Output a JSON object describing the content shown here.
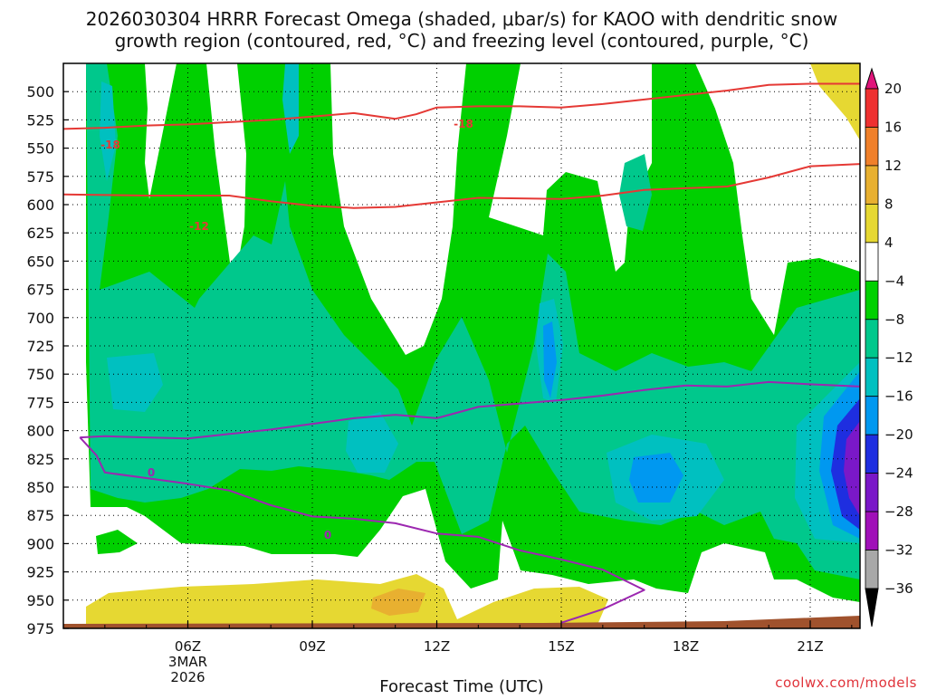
{
  "chart_data": {
    "type": "time-height contour",
    "title_line1": "2026030304 HRRR Forecast Omega (shaded, μbar/s) for KAOO with dendritic snow",
    "title_line2": "growth region (contoured, red, °C) and freezing level (contoured, purple, °C)",
    "xlabel": "Forecast Time (UTC)",
    "ylabel": "",
    "credit": "coolwx.com/models",
    "x_range_hours": [
      3,
      22.2
    ],
    "y_range_mb": [
      975,
      475
    ],
    "y_ticks": [
      500,
      525,
      550,
      575,
      600,
      625,
      650,
      675,
      700,
      725,
      750,
      775,
      800,
      825,
      850,
      875,
      900,
      925,
      950,
      975
    ],
    "y_tick_labels": [
      "500",
      "525",
      "550",
      "575",
      "600",
      "625",
      "650",
      "675",
      "700",
      "725",
      "750",
      "775",
      "800",
      "825",
      "850",
      "875",
      "900",
      "925",
      "950",
      "975"
    ],
    "x_ticks": [
      {
        "hour": 6,
        "label": "06Z",
        "sub1": "3MAR",
        "sub2": "2026"
      },
      {
        "hour": 9,
        "label": "09Z"
      },
      {
        "hour": 12,
        "label": "12Z"
      },
      {
        "hour": 15,
        "label": "15Z"
      },
      {
        "hour": 18,
        "label": "18Z"
      },
      {
        "hour": 21,
        "label": "21Z"
      }
    ],
    "colorbar": {
      "labels": [
        "20",
        "16",
        "12",
        "8",
        "4",
        "−4",
        "−8",
        "−12",
        "−16",
        "−20",
        "−24",
        "−28",
        "−32",
        "−36"
      ],
      "levels": [
        {
          "color": "#e0147a"
        },
        {
          "color": "#ee3030"
        },
        {
          "color": "#f0802a"
        },
        {
          "color": "#e8b030"
        },
        {
          "color": "#e6d832"
        },
        {
          "color": "#ffffff"
        },
        {
          "color": "#00d000"
        },
        {
          "color": "#00c88c"
        },
        {
          "color": "#00c0c0"
        },
        {
          "color": "#0098f0"
        },
        {
          "color": "#1e2ee0"
        },
        {
          "color": "#7a18c8"
        },
        {
          "color": "#a010b8"
        },
        {
          "color": "#a8a8a8"
        },
        {
          "color": "#000000"
        }
      ]
    },
    "contour_labels": [
      {
        "text": "-18",
        "color": "#e53935"
      },
      {
        "text": "-18",
        "color": "#e53935"
      },
      {
        "text": "-12",
        "color": "#e53935"
      },
      {
        "text": "0",
        "color": "#9c27b0"
      },
      {
        "text": "0",
        "color": "#9c27b0"
      }
    ],
    "series": [
      {
        "name": "-18C isotherm",
        "color": "#e53935",
        "points": [
          [
            3,
            533
          ],
          [
            4,
            532
          ],
          [
            5,
            530
          ],
          [
            6,
            529
          ],
          [
            7,
            527
          ],
          [
            8,
            525
          ],
          [
            9,
            522
          ],
          [
            10,
            519
          ],
          [
            11,
            524
          ],
          [
            11.5,
            520
          ],
          [
            12,
            514
          ],
          [
            13,
            513
          ],
          [
            14,
            513
          ],
          [
            15,
            514
          ],
          [
            16,
            511
          ],
          [
            17,
            507
          ],
          [
            18,
            503
          ],
          [
            19,
            499
          ],
          [
            20,
            494
          ],
          [
            21,
            493
          ],
          [
            22.2,
            493
          ]
        ]
      },
      {
        "name": "-12C isotherm",
        "color": "#e53935",
        "points": [
          [
            3,
            591
          ],
          [
            5,
            592
          ],
          [
            6,
            592
          ],
          [
            7,
            592
          ],
          [
            8,
            597
          ],
          [
            9,
            601
          ],
          [
            10,
            603
          ],
          [
            11,
            602
          ],
          [
            12,
            598
          ],
          [
            13,
            594
          ],
          [
            15,
            595
          ],
          [
            16,
            592
          ],
          [
            17,
            587
          ],
          [
            19,
            584
          ],
          [
            20,
            576
          ],
          [
            21,
            566
          ],
          [
            22.2,
            564
          ]
        ]
      },
      {
        "name": "0C freezing level",
        "color": "#9c27b0",
        "points": [
          [
            3.4,
            806
          ],
          [
            4,
            805
          ],
          [
            5,
            806
          ],
          [
            6,
            807
          ],
          [
            7,
            803
          ],
          [
            8,
            799
          ],
          [
            9,
            794
          ],
          [
            10,
            789
          ],
          [
            11,
            786
          ],
          [
            12,
            789
          ],
          [
            13,
            779
          ],
          [
            14,
            776
          ],
          [
            15,
            773
          ],
          [
            16,
            769
          ],
          [
            17,
            764
          ],
          [
            18,
            760
          ],
          [
            19,
            761
          ],
          [
            20,
            757
          ],
          [
            21,
            759
          ],
          [
            22.2,
            761
          ]
        ]
      },
      {
        "name": "0C freezing level lower branch",
        "color": "#9c27b0",
        "points": [
          [
            3.4,
            806
          ],
          [
            3.8,
            822
          ],
          [
            4,
            837
          ],
          [
            5,
            842
          ],
          [
            6,
            847
          ],
          [
            7,
            853
          ],
          [
            8,
            866
          ],
          [
            9,
            876
          ],
          [
            10,
            878
          ],
          [
            11,
            882
          ],
          [
            12,
            891
          ],
          [
            13,
            894
          ],
          [
            14,
            906
          ],
          [
            15,
            914
          ],
          [
            16,
            923
          ],
          [
            17,
            941
          ],
          [
            16,
            958
          ],
          [
            15,
            970
          ]
        ]
      }
    ]
  }
}
